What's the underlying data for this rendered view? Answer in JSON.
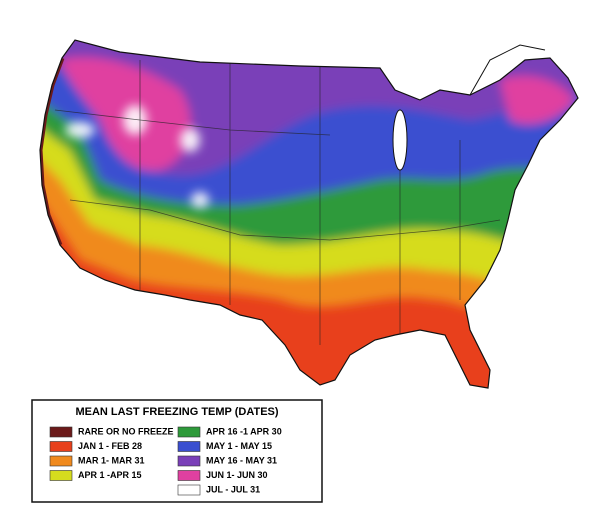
{
  "legend": {
    "title": "MEAN LAST FREEZING TEMP (DATES)",
    "items": [
      {
        "label": "RARE OR NO FREEZE",
        "color": "#6b1a1a"
      },
      {
        "label": "JAN 1 - FEB 28",
        "color": "#e8401c"
      },
      {
        "label": "MAR 1- MAR 31",
        "color": "#f08a1e"
      },
      {
        "label": "APR 1 -APR 15",
        "color": "#d6dc1e"
      },
      {
        "label": "APR 16 -1 APR 30",
        "color": "#2e9a3a"
      },
      {
        "label": "MAY 1 - MAY 15",
        "color": "#3a4fd0"
      },
      {
        "label": "MAY 16 - MAY 31",
        "color": "#7a3fb8"
      },
      {
        "label": "JUN 1- JUN 30",
        "color": "#e040a0"
      },
      {
        "label": "JUL - JUL 31",
        "color": "#ffffff"
      }
    ]
  }
}
